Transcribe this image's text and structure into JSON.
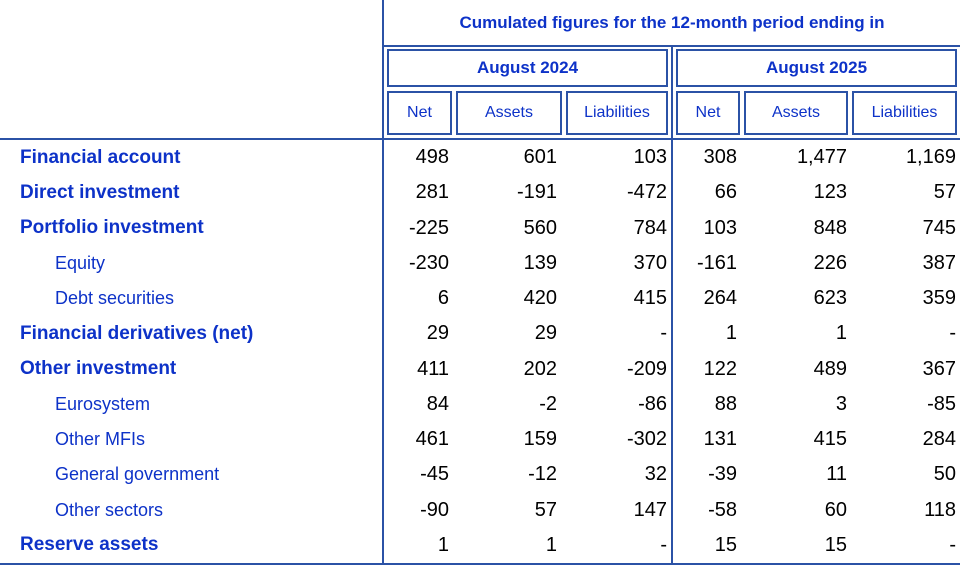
{
  "table": {
    "title": "Cumulated figures for the 12-month period ending in",
    "period_groups": [
      {
        "label": "August 2024"
      },
      {
        "label": "August 2025"
      }
    ],
    "measure_headers": [
      "Net",
      "Assets",
      "Liabilities"
    ],
    "rows": [
      {
        "label": "Financial account",
        "style": "bold",
        "values": [
          "498",
          "601",
          "103",
          "308",
          "1,477",
          "1,169"
        ]
      },
      {
        "label": "Direct investment",
        "style": "bold",
        "values": [
          "281",
          "-191",
          "-472",
          "66",
          "123",
          "57"
        ]
      },
      {
        "label": "Portfolio investment",
        "style": "bold",
        "values": [
          "-225",
          "560",
          "784",
          "103",
          "848",
          "745"
        ]
      },
      {
        "label": "Equity",
        "style": "indent",
        "values": [
          "-230",
          "139",
          "370",
          "-161",
          "226",
          "387"
        ]
      },
      {
        "label": "Debt securities",
        "style": "indent",
        "values": [
          "6",
          "420",
          "415",
          "264",
          "623",
          "359"
        ]
      },
      {
        "label": "Financial derivatives (net)",
        "style": "bold",
        "values": [
          "29",
          "29",
          "-",
          "1",
          "1",
          "-"
        ]
      },
      {
        "label": "Other investment",
        "style": "bold",
        "values": [
          "411",
          "202",
          "-209",
          "122",
          "489",
          "367"
        ]
      },
      {
        "label": "Eurosystem",
        "style": "indent",
        "values": [
          "84",
          "-2",
          "-86",
          "88",
          "3",
          "-85"
        ]
      },
      {
        "label": "Other MFIs",
        "style": "indent",
        "values": [
          "461",
          "159",
          "-302",
          "131",
          "415",
          "284"
        ]
      },
      {
        "label": "General government",
        "style": "indent",
        "values": [
          "-45",
          "-12",
          "32",
          "-39",
          "11",
          "50"
        ]
      },
      {
        "label": "Other sectors",
        "style": "indent",
        "values": [
          "-90",
          "57",
          "147",
          "-58",
          "60",
          "118"
        ]
      },
      {
        "label": "Reserve assets",
        "style": "bold",
        "values": [
          "1",
          "1",
          "-",
          "15",
          "15",
          "-"
        ]
      }
    ],
    "colors": {
      "text_blue": "#0d32c8",
      "border_blue": "#2b52a6",
      "number_color": "#000000"
    }
  }
}
